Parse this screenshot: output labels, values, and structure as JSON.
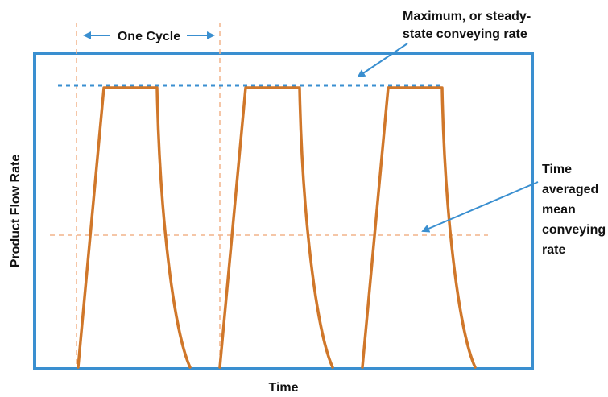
{
  "labels": {
    "one_cycle": "One Cycle",
    "steady_state_line1": "Maximum, or steady-",
    "steady_state_line2": "state conveying rate",
    "mean_line1": "Time",
    "mean_line2": "averaged",
    "mean_line3": "mean",
    "mean_line4": "conveying",
    "mean_line5": "rate",
    "x_axis": "Time",
    "y_axis": "Product Flow Rate"
  },
  "colors": {
    "frame": "#3a8fd0",
    "pulse": "#d0772a",
    "guide": "#f2b48a",
    "max_line": "#3a8fd0",
    "arrow": "#3a8fd0",
    "text": "#111111",
    "background": "#ffffff"
  },
  "diagram": {
    "pulse_count": 3,
    "pulse_shape": "linear rise, flat top at maximum rate, exponential-like decay",
    "max_line_style": "dashed",
    "guide_line_style": "dashed"
  }
}
